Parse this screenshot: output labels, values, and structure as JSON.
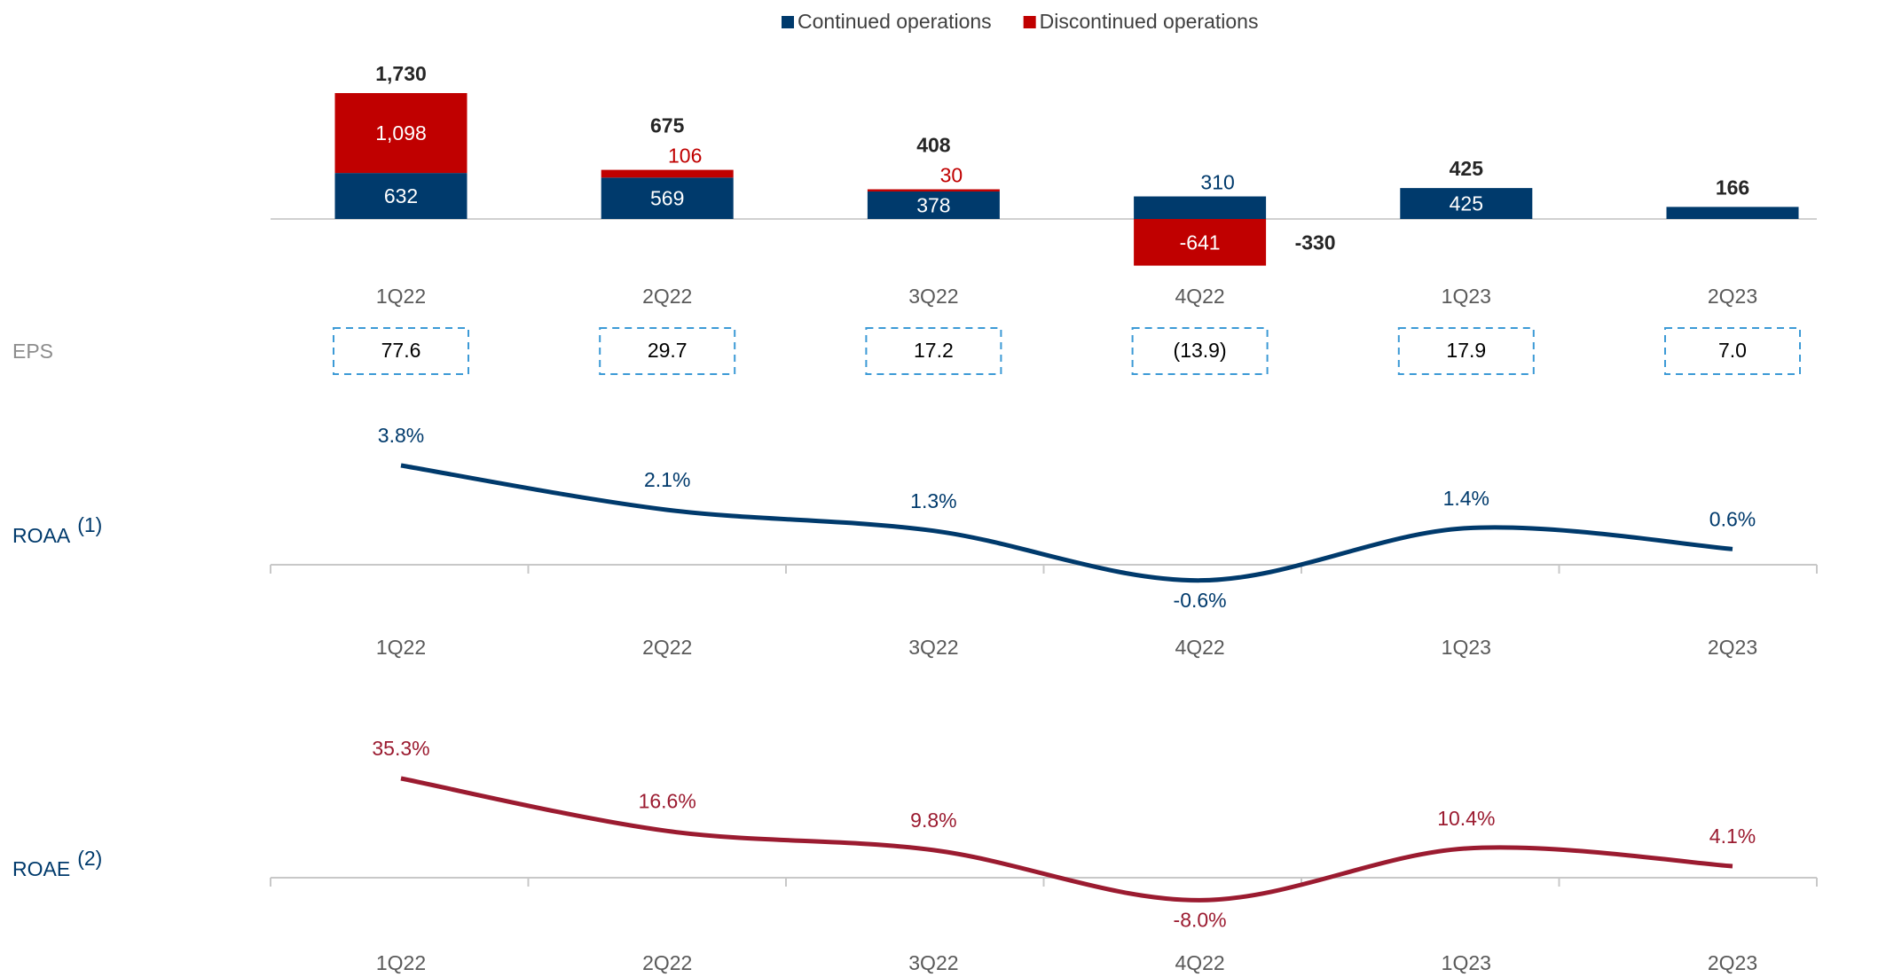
{
  "chart_data": [
    {
      "type": "bar",
      "stacked": true,
      "categories": [
        "1Q22",
        "2Q22",
        "3Q22",
        "4Q22",
        "1Q23",
        "2Q23"
      ],
      "series": [
        {
          "name": "Continued operations",
          "color": "#003a6c",
          "values": [
            632,
            569,
            378,
            310,
            425,
            166
          ],
          "value_labels": [
            "632",
            "569",
            "378",
            "310",
            "425",
            null
          ]
        },
        {
          "name": "Discontinued operations",
          "color": "#c00000",
          "values": [
            1098,
            106,
            30,
            -641,
            null,
            null
          ],
          "value_labels": [
            "1,098",
            "106",
            "30",
            "-641",
            null,
            null
          ]
        }
      ],
      "total_labels": [
        "1,730",
        "675",
        "408",
        "-330",
        "425",
        "166"
      ]
    },
    {
      "type": "table",
      "label": "EPS",
      "values": [
        "77.6",
        "29.7",
        "17.2",
        "(13.9)",
        "17.9",
        "7.0"
      ]
    },
    {
      "type": "line",
      "label": "ROAA",
      "note": "(1)",
      "color": "#003a6c",
      "categories": [
        "1Q22",
        "2Q22",
        "3Q22",
        "4Q22",
        "1Q23",
        "2Q23"
      ],
      "values": [
        3.8,
        2.1,
        1.3,
        -0.6,
        1.4,
        0.6
      ],
      "value_labels": [
        "3.8%",
        "2.1%",
        "1.3%",
        "-0.6%",
        "1.4%",
        "0.6%"
      ]
    },
    {
      "type": "line",
      "label": "ROAE",
      "note": "(2)",
      "color": "#9b1b30",
      "categories": [
        "1Q22",
        "2Q22",
        "3Q22",
        "4Q22",
        "1Q23",
        "2Q23"
      ],
      "values": [
        35.3,
        16.6,
        9.8,
        -8.0,
        10.4,
        4.1
      ],
      "value_labels": [
        "35.3%",
        "16.6%",
        "9.8%",
        "-8.0%",
        "10.4%",
        "4.1%"
      ]
    }
  ]
}
